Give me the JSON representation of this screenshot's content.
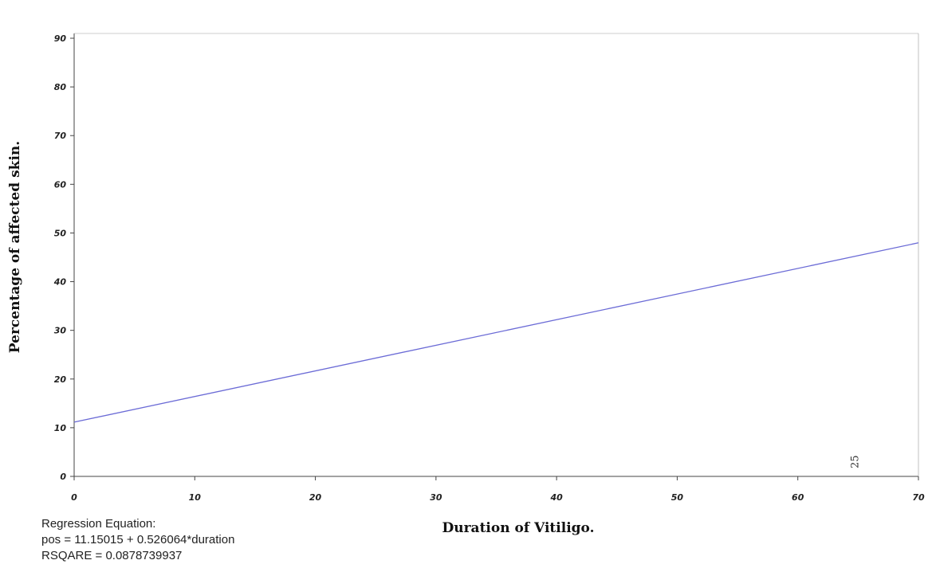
{
  "chart_data": {
    "type": "line",
    "title": "",
    "xlabel": "Duration of Vitiligo.",
    "ylabel": "Percentage of affected skin.",
    "xlim": [
      0,
      70
    ],
    "ylim": [
      0,
      90
    ],
    "x_ticks": [
      "0",
      "10",
      "20",
      "30",
      "40",
      "50",
      "60",
      "70"
    ],
    "y_ticks": [
      "0",
      "10",
      "20",
      "30",
      "40",
      "50",
      "60",
      "70",
      "80",
      "90"
    ],
    "grid": false,
    "series": [
      {
        "x": [
          0,
          70
        ],
        "y": [
          11.15,
          47.97
        ],
        "color": "#6b6bd6"
      }
    ],
    "annotations": [
      {
        "text": "25",
        "x": 65,
        "y": 3
      }
    ]
  },
  "regression": {
    "heading": "Regression Equation:",
    "equation": "pos  =  11.15015 + 0.526064*duration",
    "rsquare": "RSQARE = 0.0878739937"
  }
}
